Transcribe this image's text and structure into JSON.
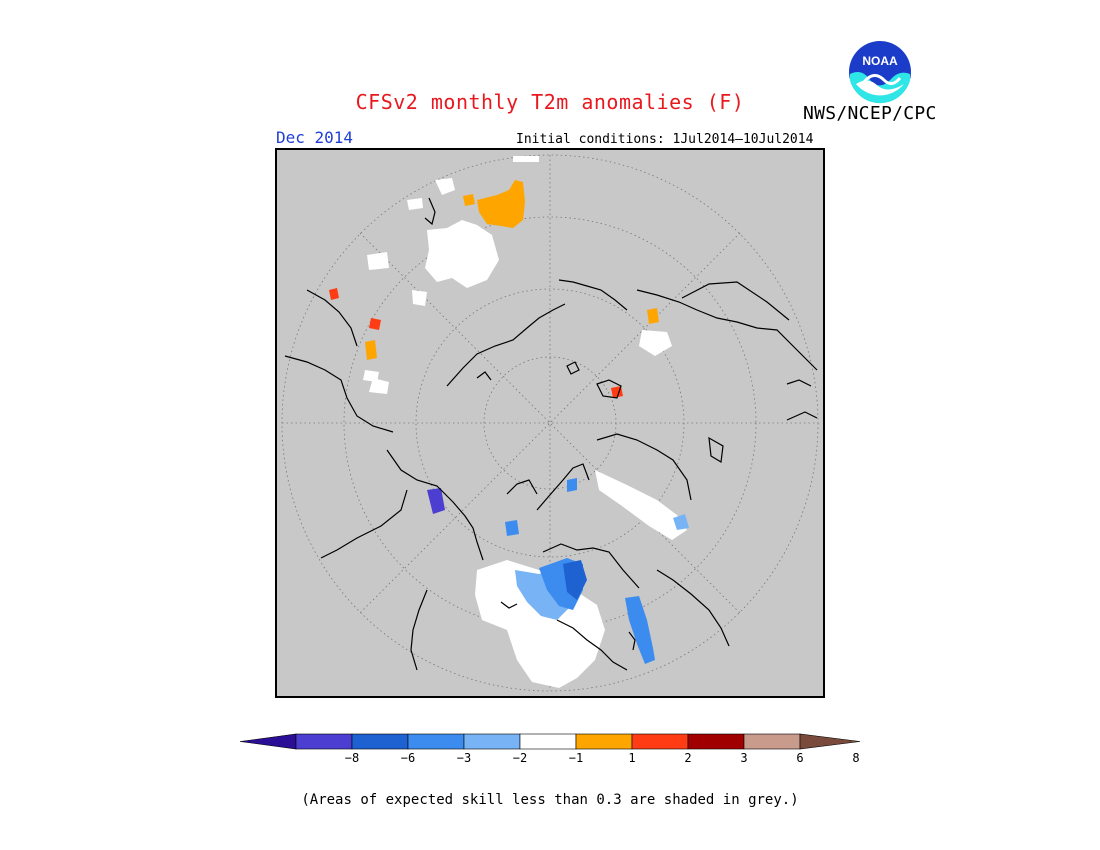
{
  "title": "CFSv2 monthly T2m anomalies (F)",
  "valid_month": "Dec 2014",
  "initial_conditions": "Initial conditions: 1Jul2014–10Jul2014",
  "agency": "NWS/NCEP/CPC",
  "logo": {
    "text": "NOAA",
    "icon": "noaa-logo-icon"
  },
  "map": {
    "projection": "north-polar-stereographic",
    "mask_color": "#c8c8c8"
  },
  "colorbar": {
    "colors": [
      "#2a0f96",
      "#4b3ed0",
      "#1e62d2",
      "#3c8cf0",
      "#78b4f5",
      "#ffffff",
      "#ffa500",
      "#ff3c14",
      "#a00000",
      "#c89b8c",
      "#7a4a3c"
    ],
    "tick_labels": [
      "−8",
      "−6",
      "−3",
      "−2",
      "−1",
      "1",
      "2",
      "3",
      "6",
      "8"
    ]
  },
  "footnote": "(Areas of expected skill less than 0.3 are shaded in grey.)"
}
